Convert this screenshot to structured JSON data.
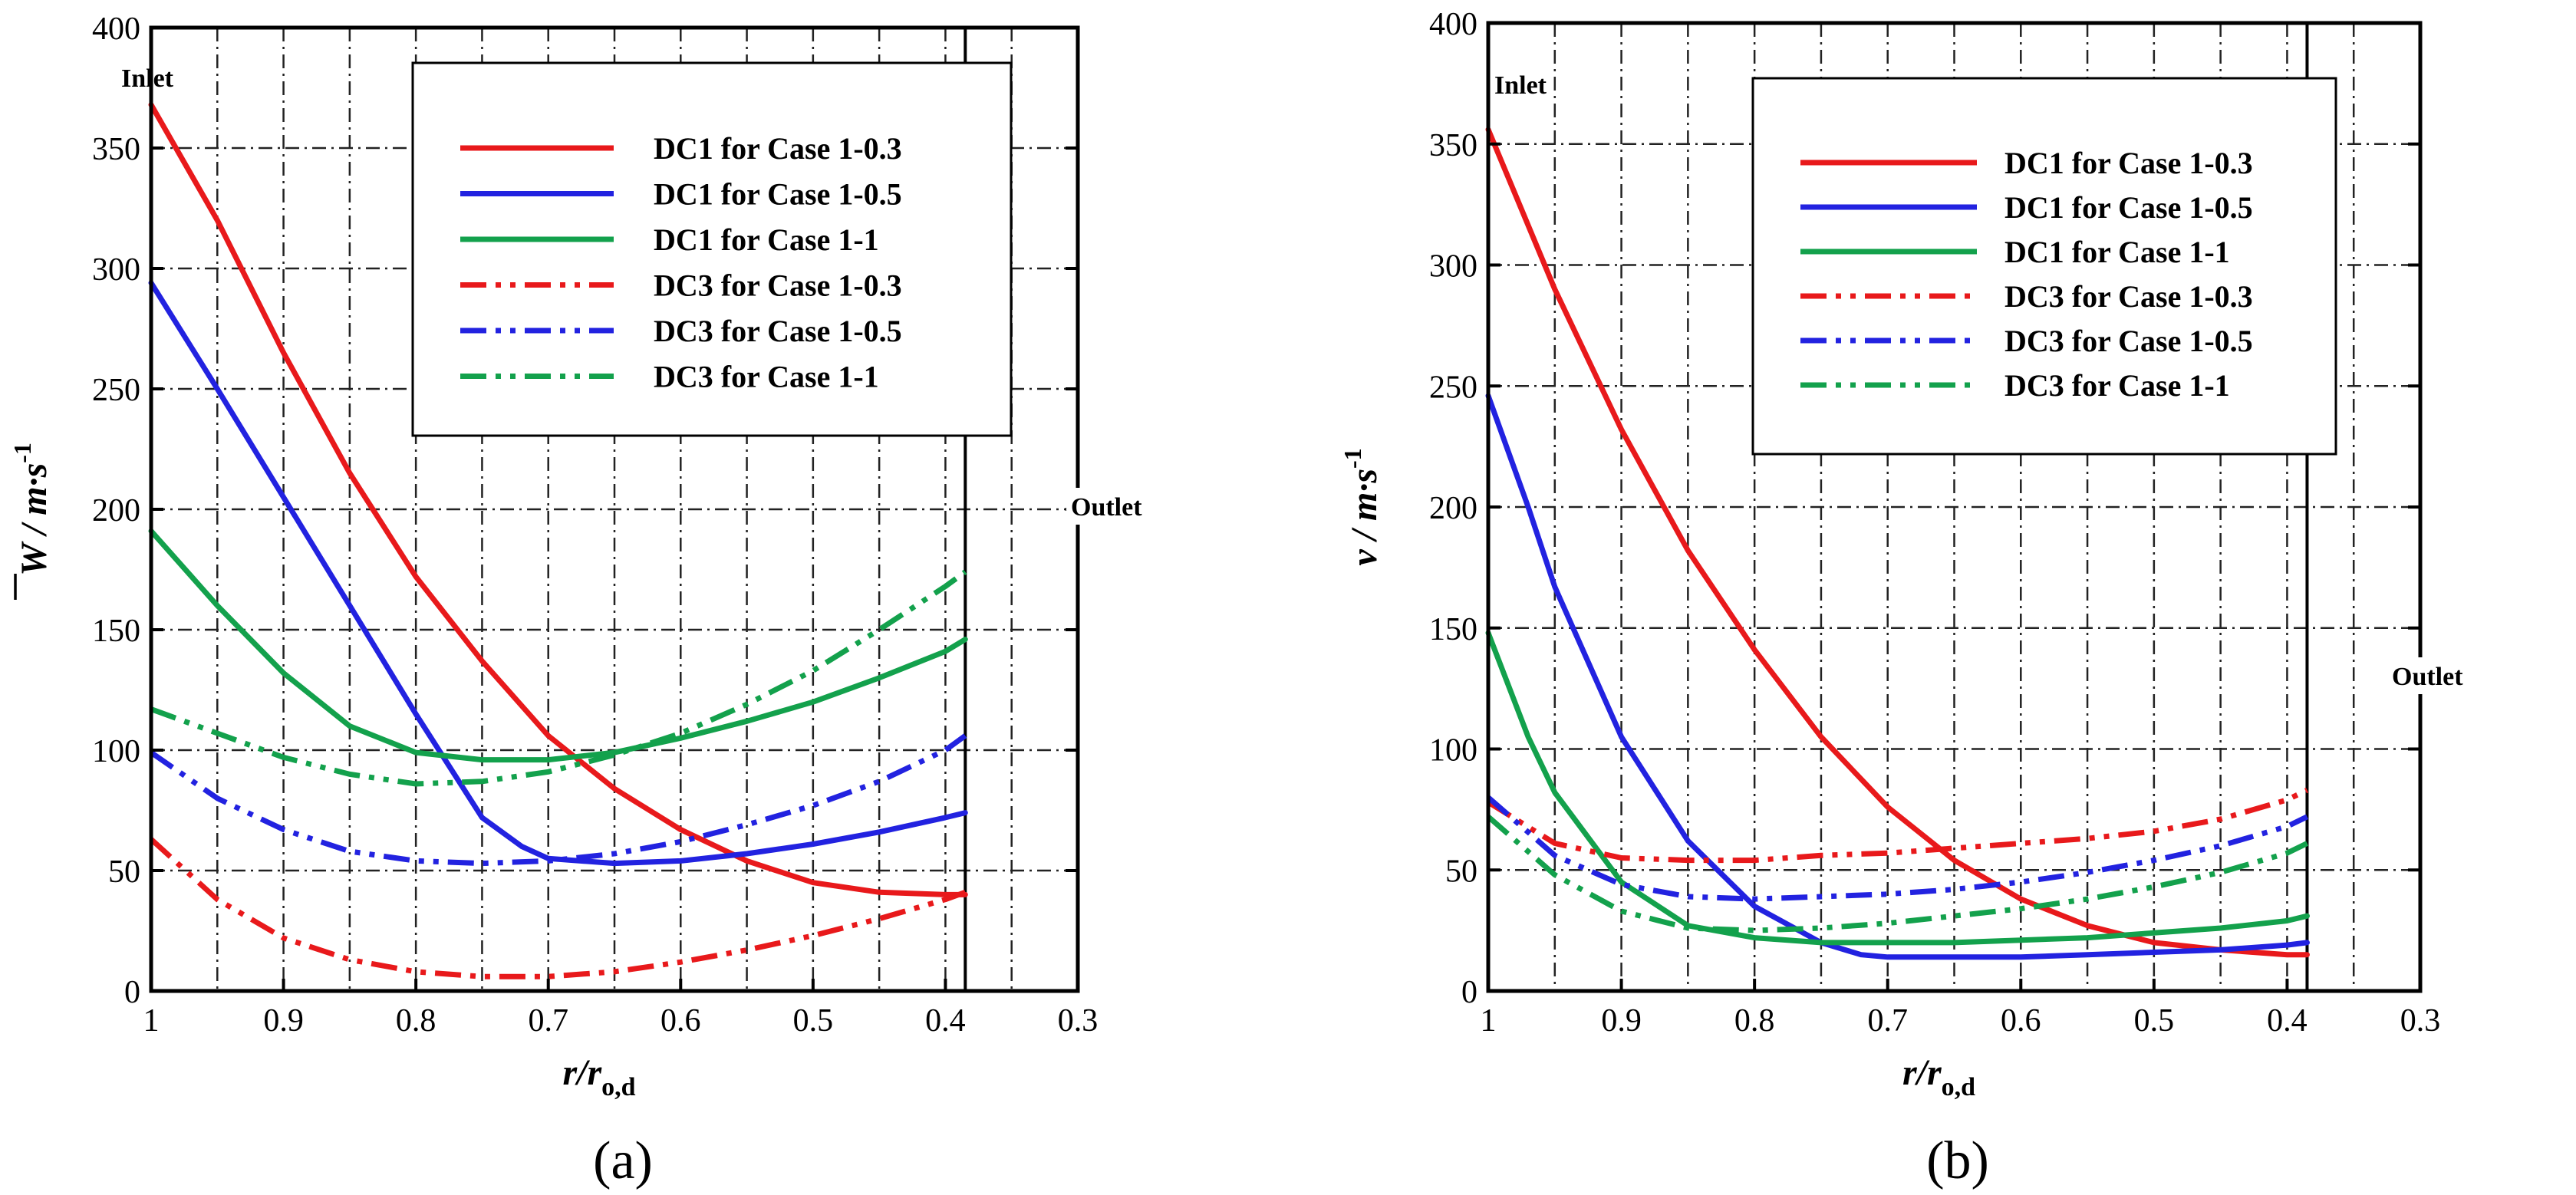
{
  "figure": {
    "panel_labels": [
      "(a)",
      "(b)"
    ]
  },
  "chart_data": [
    {
      "type": "line",
      "panel": "(a)",
      "xlabel": {
        "main": "r/r",
        "sub": "o,d"
      },
      "ylabel": {
        "main": "W / m·s",
        "sup": "-1"
      },
      "xlim": [
        1,
        0.3
      ],
      "ylim": [
        0,
        400
      ],
      "xticks": [
        1,
        0.9,
        0.8,
        0.7,
        0.6,
        0.5,
        0.4,
        0.3
      ],
      "xtick_labels": [
        "1",
        "0.9",
        "0.8",
        "0.7",
        "0.6",
        "0.5",
        "0.4",
        "0.3"
      ],
      "yticks": [
        0,
        50,
        100,
        150,
        200,
        250,
        300,
        350,
        400
      ],
      "ytick_labels": [
        "0",
        "50",
        "100",
        "150",
        "200",
        "250",
        "300",
        "350",
        "400"
      ],
      "minor_xgrid": [
        0.95,
        0.85,
        0.75,
        0.65,
        0.55,
        0.45,
        0.35
      ],
      "grid": true,
      "outlet_x": 0.385,
      "annotations": {
        "inlet": "Inlet",
        "outlet": "Outlet"
      },
      "legend_position": "top-center",
      "series": [
        {
          "name": "DC1 for Case 1-0.3",
          "color": "#e8191b",
          "style": "solid",
          "x": [
            1,
            0.95,
            0.9,
            0.85,
            0.8,
            0.75,
            0.7,
            0.65,
            0.6,
            0.55,
            0.5,
            0.45,
            0.4,
            0.385
          ],
          "y": [
            368,
            320,
            265,
            215,
            172,
            137,
            106,
            84,
            67,
            54,
            45,
            41,
            40,
            40
          ]
        },
        {
          "name": "DC1 for Case 1-0.5",
          "color": "#2222e0",
          "style": "solid",
          "x": [
            1,
            0.95,
            0.9,
            0.85,
            0.8,
            0.75,
            0.72,
            0.7,
            0.65,
            0.6,
            0.55,
            0.5,
            0.45,
            0.4,
            0.385
          ],
          "y": [
            294,
            250,
            205,
            160,
            115,
            72,
            60,
            55,
            53,
            54,
            57,
            61,
            66,
            72,
            74
          ]
        },
        {
          "name": "DC1 for Case 1-1",
          "color": "#13a14c",
          "style": "solid",
          "x": [
            1,
            0.95,
            0.9,
            0.85,
            0.8,
            0.75,
            0.7,
            0.65,
            0.6,
            0.55,
            0.5,
            0.45,
            0.4,
            0.385
          ],
          "y": [
            191,
            160,
            132,
            110,
            99,
            96,
            96,
            99,
            105,
            112,
            120,
            130,
            141,
            146
          ]
        },
        {
          "name": "DC3 for Case 1-0.3",
          "color": "#e8191b",
          "style": "dashdotdot",
          "x": [
            1,
            0.95,
            0.9,
            0.85,
            0.8,
            0.75,
            0.7,
            0.65,
            0.6,
            0.55,
            0.5,
            0.45,
            0.4,
            0.385
          ],
          "y": [
            63,
            38,
            22,
            13,
            8,
            6,
            6,
            8,
            12,
            17,
            23,
            30,
            38,
            41
          ]
        },
        {
          "name": "DC3 for Case 1-0.5",
          "color": "#2222e0",
          "style": "dashdotdot",
          "x": [
            1,
            0.95,
            0.9,
            0.85,
            0.8,
            0.75,
            0.7,
            0.65,
            0.6,
            0.55,
            0.5,
            0.45,
            0.4,
            0.385
          ],
          "y": [
            99,
            80,
            67,
            58,
            54,
            53,
            54,
            57,
            62,
            69,
            77,
            87,
            100,
            106
          ]
        },
        {
          "name": "DC3 for Case 1-1",
          "color": "#13a14c",
          "style": "dashdotdot",
          "x": [
            1,
            0.95,
            0.9,
            0.85,
            0.8,
            0.75,
            0.7,
            0.65,
            0.6,
            0.55,
            0.5,
            0.45,
            0.4,
            0.385
          ],
          "y": [
            117,
            107,
            97,
            90,
            86,
            87,
            91,
            98,
            107,
            119,
            133,
            150,
            168,
            174
          ]
        }
      ]
    },
    {
      "type": "line",
      "panel": "(b)",
      "xlabel": {
        "main": "r/r",
        "sub": "o,d"
      },
      "ylabel": {
        "main": "v / m·s",
        "sup": "-1"
      },
      "xlim": [
        1,
        0.3
      ],
      "ylim": [
        0,
        400
      ],
      "xticks": [
        1,
        0.9,
        0.8,
        0.7,
        0.6,
        0.5,
        0.4,
        0.3
      ],
      "xtick_labels": [
        "1",
        "0.9",
        "0.8",
        "0.7",
        "0.6",
        "0.5",
        "0.4",
        "0.3"
      ],
      "yticks": [
        0,
        50,
        100,
        150,
        200,
        250,
        300,
        350,
        400
      ],
      "ytick_labels": [
        "0",
        "50",
        "100",
        "150",
        "200",
        "250",
        "300",
        "350",
        "400"
      ],
      "minor_xgrid": [
        0.95,
        0.85,
        0.75,
        0.65,
        0.55,
        0.45,
        0.35
      ],
      "grid": true,
      "outlet_x": 0.385,
      "annotations": {
        "inlet": "Inlet",
        "outlet": "Outlet"
      },
      "legend_position": "top-center",
      "series": [
        {
          "name": "DC1 for Case 1-0.3",
          "color": "#e8191b",
          "style": "solid",
          "x": [
            1,
            0.95,
            0.9,
            0.85,
            0.8,
            0.75,
            0.7,
            0.65,
            0.6,
            0.55,
            0.5,
            0.45,
            0.4,
            0.385
          ],
          "y": [
            356,
            290,
            232,
            182,
            141,
            105,
            76,
            54,
            38,
            27,
            20,
            17,
            15,
            15
          ]
        },
        {
          "name": "DC1 for Case 1-0.5",
          "color": "#2222e0",
          "style": "solid",
          "x": [
            1,
            0.97,
            0.95,
            0.9,
            0.85,
            0.8,
            0.75,
            0.72,
            0.7,
            0.65,
            0.6,
            0.55,
            0.5,
            0.45,
            0.4,
            0.385
          ],
          "y": [
            246,
            200,
            167,
            105,
            62,
            35,
            20,
            15,
            14,
            14,
            14,
            15,
            16,
            17,
            19,
            20
          ]
        },
        {
          "name": "DC1 for Case 1-1",
          "color": "#13a14c",
          "style": "solid",
          "x": [
            1,
            0.97,
            0.95,
            0.9,
            0.85,
            0.8,
            0.75,
            0.7,
            0.65,
            0.6,
            0.55,
            0.5,
            0.45,
            0.4,
            0.385
          ],
          "y": [
            148,
            105,
            82,
            45,
            27,
            22,
            20,
            20,
            20,
            21,
            22,
            24,
            26,
            29,
            31
          ]
        },
        {
          "name": "DC3 for Case 1-0.3",
          "color": "#e8191b",
          "style": "dashdotdot",
          "x": [
            1,
            0.95,
            0.9,
            0.85,
            0.8,
            0.75,
            0.7,
            0.65,
            0.6,
            0.55,
            0.5,
            0.45,
            0.4,
            0.385
          ],
          "y": [
            78,
            61,
            55,
            54,
            54,
            56,
            57,
            59,
            61,
            63,
            66,
            71,
            79,
            83
          ]
        },
        {
          "name": "DC3 for Case 1-0.5",
          "color": "#2222e0",
          "style": "dashdotdot",
          "x": [
            1,
            0.95,
            0.9,
            0.85,
            0.8,
            0.75,
            0.7,
            0.65,
            0.6,
            0.55,
            0.5,
            0.45,
            0.4,
            0.385
          ],
          "y": [
            80,
            56,
            44,
            39,
            38,
            39,
            40,
            42,
            45,
            49,
            54,
            60,
            68,
            72
          ]
        },
        {
          "name": "DC3 for Case 1-1",
          "color": "#13a14c",
          "style": "dashdotdot",
          "x": [
            1,
            0.95,
            0.9,
            0.85,
            0.8,
            0.75,
            0.7,
            0.65,
            0.6,
            0.55,
            0.5,
            0.45,
            0.4,
            0.385
          ],
          "y": [
            72,
            48,
            33,
            26,
            25,
            26,
            28,
            31,
            34,
            38,
            43,
            49,
            57,
            61
          ]
        }
      ]
    }
  ]
}
